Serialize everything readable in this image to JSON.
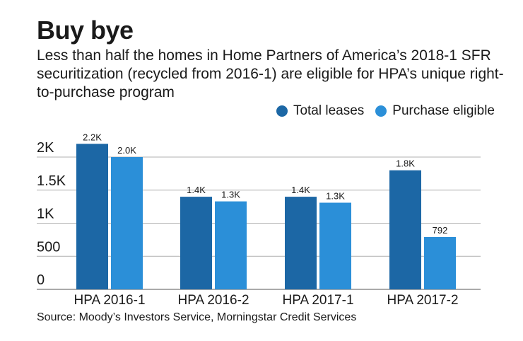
{
  "header": {
    "title": "Buy bye",
    "subtitle": "Less than half the homes in Home Partners of America’s 2018-1 SFR securitization (recycled from 2016-1) are eligible for HPA’s unique right-to-purchase program"
  },
  "source": "Source: Moody’s Investors Service, Morningstar Credit Services",
  "colors": {
    "total": "#1c67a5",
    "eligible": "#2b8fd8",
    "grid": "#b0b0b0"
  },
  "chart_data": {
    "type": "bar",
    "title": "Buy bye",
    "categories": [
      "HPA 2016-1",
      "HPA 2016-2",
      "HPA 2017-1",
      "HPA 2017-2"
    ],
    "series": [
      {
        "name": "Total leases",
        "values": [
          2200,
          1400,
          1400,
          1800
        ],
        "labels": [
          "2.2K",
          "1.4K",
          "1.4K",
          "1.8K"
        ]
      },
      {
        "name": "Purchase eligible",
        "values": [
          2000,
          1330,
          1310,
          792
        ],
        "labels": [
          "2.0K",
          "1.3K",
          "1.3K",
          "792"
        ]
      }
    ],
    "yticks": [
      0,
      500,
      1000,
      1500,
      2000
    ],
    "ytick_labels": [
      "0",
      "500",
      "1K",
      "1.5K",
      "2K"
    ],
    "ylim": [
      0,
      2000
    ],
    "xlabel": "",
    "ylabel": "",
    "legend": "top-right"
  }
}
